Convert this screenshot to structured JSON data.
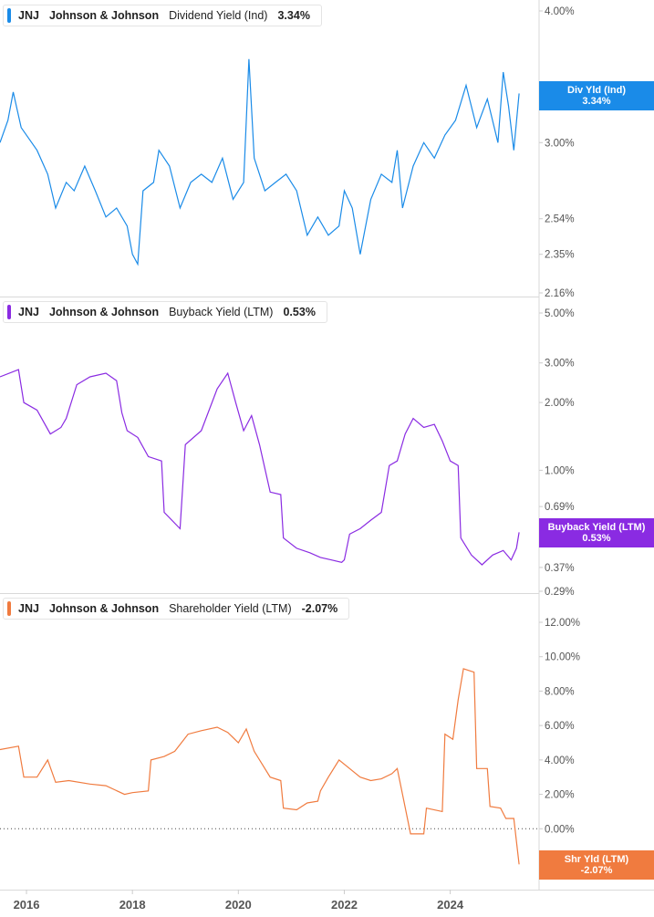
{
  "chart_data": [
    {
      "type": "line",
      "ticker": "JNJ",
      "company": "Johnson & Johnson",
      "metric": "Dividend Yield (Ind)",
      "current_value": "3.34%",
      "flag_label": "Div Yld (Ind)",
      "flag_value": "3.34%",
      "color": "#1a8be8",
      "y_scale": "log",
      "y_ticks": [
        "4.00%",
        "3.00%",
        "2.54%",
        "2.35%",
        "2.16%"
      ],
      "x_range": [
        2015.5,
        2025.35
      ],
      "points": [
        [
          2015.5,
          3.0
        ],
        [
          2015.65,
          3.15
        ],
        [
          2015.75,
          3.35
        ],
        [
          2015.9,
          3.1
        ],
        [
          2016.2,
          2.95
        ],
        [
          2016.4,
          2.8
        ],
        [
          2016.55,
          2.6
        ],
        [
          2016.75,
          2.75
        ],
        [
          2016.9,
          2.7
        ],
        [
          2017.1,
          2.85
        ],
        [
          2017.3,
          2.7
        ],
        [
          2017.5,
          2.55
        ],
        [
          2017.7,
          2.6
        ],
        [
          2017.9,
          2.5
        ],
        [
          2018.0,
          2.35
        ],
        [
          2018.1,
          2.3
        ],
        [
          2018.2,
          2.7
        ],
        [
          2018.4,
          2.75
        ],
        [
          2018.5,
          2.95
        ],
        [
          2018.7,
          2.85
        ],
        [
          2018.9,
          2.6
        ],
        [
          2019.1,
          2.75
        ],
        [
          2019.3,
          2.8
        ],
        [
          2019.5,
          2.75
        ],
        [
          2019.7,
          2.9
        ],
        [
          2019.9,
          2.65
        ],
        [
          2020.1,
          2.75
        ],
        [
          2020.2,
          3.6
        ],
        [
          2020.3,
          2.9
        ],
        [
          2020.5,
          2.7
        ],
        [
          2020.7,
          2.75
        ],
        [
          2020.9,
          2.8
        ],
        [
          2021.1,
          2.7
        ],
        [
          2021.3,
          2.45
        ],
        [
          2021.5,
          2.55
        ],
        [
          2021.7,
          2.45
        ],
        [
          2021.9,
          2.5
        ],
        [
          2022.0,
          2.7
        ],
        [
          2022.15,
          2.6
        ],
        [
          2022.3,
          2.35
        ],
        [
          2022.5,
          2.65
        ],
        [
          2022.7,
          2.8
        ],
        [
          2022.9,
          2.75
        ],
        [
          2023.0,
          2.95
        ],
        [
          2023.1,
          2.6
        ],
        [
          2023.3,
          2.85
        ],
        [
          2023.5,
          3.0
        ],
        [
          2023.7,
          2.9
        ],
        [
          2023.9,
          3.05
        ],
        [
          2024.1,
          3.15
        ],
        [
          2024.3,
          3.4
        ],
        [
          2024.5,
          3.1
        ],
        [
          2024.7,
          3.3
        ],
        [
          2024.9,
          3.0
        ],
        [
          2025.0,
          3.5
        ],
        [
          2025.1,
          3.25
        ],
        [
          2025.2,
          2.95
        ],
        [
          2025.3,
          3.34
        ]
      ]
    },
    {
      "type": "line",
      "ticker": "JNJ",
      "company": "Johnson & Johnson",
      "metric": "Buyback Yield (LTM)",
      "current_value": "0.53%",
      "flag_label": "Buyback Yield (LTM)",
      "flag_value": "0.53%",
      "color": "#8a2be2",
      "y_scale": "log",
      "y_ticks": [
        "5.00%",
        "3.00%",
        "2.00%",
        "1.00%",
        "0.69%",
        "0.37%",
        "0.29%"
      ],
      "x_range": [
        2015.5,
        2025.35
      ],
      "points": [
        [
          2015.5,
          2.6
        ],
        [
          2015.85,
          2.8
        ],
        [
          2015.95,
          2.0
        ],
        [
          2016.2,
          1.85
        ],
        [
          2016.45,
          1.45
        ],
        [
          2016.65,
          1.55
        ],
        [
          2016.75,
          1.7
        ],
        [
          2016.95,
          2.4
        ],
        [
          2017.2,
          2.6
        ],
        [
          2017.5,
          2.7
        ],
        [
          2017.7,
          2.5
        ],
        [
          2017.8,
          1.8
        ],
        [
          2017.9,
          1.5
        ],
        [
          2018.1,
          1.4
        ],
        [
          2018.3,
          1.15
        ],
        [
          2018.55,
          1.1
        ],
        [
          2018.6,
          0.65
        ],
        [
          2018.9,
          0.55
        ],
        [
          2019.0,
          1.3
        ],
        [
          2019.3,
          1.5
        ],
        [
          2019.6,
          2.3
        ],
        [
          2019.8,
          2.7
        ],
        [
          2019.95,
          2.0
        ],
        [
          2020.1,
          1.5
        ],
        [
          2020.25,
          1.75
        ],
        [
          2020.4,
          1.3
        ],
        [
          2020.6,
          0.8
        ],
        [
          2020.8,
          0.78
        ],
        [
          2020.85,
          0.5
        ],
        [
          2021.1,
          0.45
        ],
        [
          2021.35,
          0.43
        ],
        [
          2021.55,
          0.41
        ],
        [
          2021.75,
          0.4
        ],
        [
          2021.95,
          0.39
        ],
        [
          2022.0,
          0.4
        ],
        [
          2022.1,
          0.52
        ],
        [
          2022.3,
          0.55
        ],
        [
          2022.5,
          0.6
        ],
        [
          2022.7,
          0.65
        ],
        [
          2022.85,
          1.05
        ],
        [
          2023.0,
          1.1
        ],
        [
          2023.15,
          1.45
        ],
        [
          2023.3,
          1.7
        ],
        [
          2023.5,
          1.55
        ],
        [
          2023.7,
          1.6
        ],
        [
          2023.85,
          1.35
        ],
        [
          2024.0,
          1.1
        ],
        [
          2024.15,
          1.05
        ],
        [
          2024.2,
          0.5
        ],
        [
          2024.4,
          0.42
        ],
        [
          2024.6,
          0.38
        ],
        [
          2024.8,
          0.42
        ],
        [
          2025.0,
          0.44
        ],
        [
          2025.15,
          0.4
        ],
        [
          2025.25,
          0.45
        ],
        [
          2025.3,
          0.53
        ]
      ]
    },
    {
      "type": "line",
      "ticker": "JNJ",
      "company": "Johnson & Johnson",
      "metric": "Shareholder Yield (LTM)",
      "current_value": "-2.07%",
      "flag_label": "Shr Yld (LTM)",
      "flag_value": "-2.07%",
      "color": "#f07b3f",
      "y_scale": "linear",
      "y_ticks": [
        "12.00%",
        "10.00%",
        "8.00%",
        "6.00%",
        "4.00%",
        "2.00%",
        "0.00%",
        "-2.00%"
      ],
      "y_tick_values": [
        12,
        10,
        8,
        6,
        4,
        2,
        0,
        -2
      ],
      "zero_line": true,
      "x_range": [
        2015.5,
        2025.35
      ],
      "points": [
        [
          2015.5,
          4.6
        ],
        [
          2015.85,
          4.8
        ],
        [
          2015.95,
          3.0
        ],
        [
          2016.2,
          3.0
        ],
        [
          2016.4,
          4.0
        ],
        [
          2016.55,
          2.7
        ],
        [
          2016.8,
          2.8
        ],
        [
          2017.2,
          2.6
        ],
        [
          2017.5,
          2.5
        ],
        [
          2017.85,
          2.0
        ],
        [
          2018.0,
          2.1
        ],
        [
          2018.3,
          2.2
        ],
        [
          2018.35,
          4.0
        ],
        [
          2018.6,
          4.2
        ],
        [
          2018.8,
          4.5
        ],
        [
          2019.05,
          5.5
        ],
        [
          2019.3,
          5.7
        ],
        [
          2019.6,
          5.9
        ],
        [
          2019.8,
          5.6
        ],
        [
          2020.0,
          5.0
        ],
        [
          2020.15,
          5.8
        ],
        [
          2020.3,
          4.5
        ],
        [
          2020.6,
          3.0
        ],
        [
          2020.8,
          2.8
        ],
        [
          2020.85,
          1.2
        ],
        [
          2021.1,
          1.1
        ],
        [
          2021.3,
          1.5
        ],
        [
          2021.5,
          1.6
        ],
        [
          2021.55,
          2.2
        ],
        [
          2021.7,
          3.0
        ],
        [
          2021.9,
          4.0
        ],
        [
          2022.1,
          3.5
        ],
        [
          2022.3,
          3.0
        ],
        [
          2022.5,
          2.8
        ],
        [
          2022.7,
          2.9
        ],
        [
          2022.9,
          3.2
        ],
        [
          2023.0,
          3.5
        ],
        [
          2023.1,
          2.0
        ],
        [
          2023.25,
          -0.3
        ],
        [
          2023.5,
          -0.3
        ],
        [
          2023.55,
          1.2
        ],
        [
          2023.85,
          1.0
        ],
        [
          2023.9,
          5.5
        ],
        [
          2024.05,
          5.2
        ],
        [
          2024.15,
          7.5
        ],
        [
          2024.25,
          9.3
        ],
        [
          2024.45,
          9.1
        ],
        [
          2024.5,
          3.5
        ],
        [
          2024.7,
          3.5
        ],
        [
          2024.75,
          1.3
        ],
        [
          2024.95,
          1.2
        ],
        [
          2025.05,
          0.6
        ],
        [
          2025.2,
          0.6
        ],
        [
          2025.3,
          -2.07
        ]
      ]
    }
  ],
  "x_axis": {
    "ticks": [
      "2016",
      "2018",
      "2020",
      "2022",
      "2024"
    ],
    "tick_values": [
      2016,
      2018,
      2020,
      2022,
      2024
    ]
  }
}
